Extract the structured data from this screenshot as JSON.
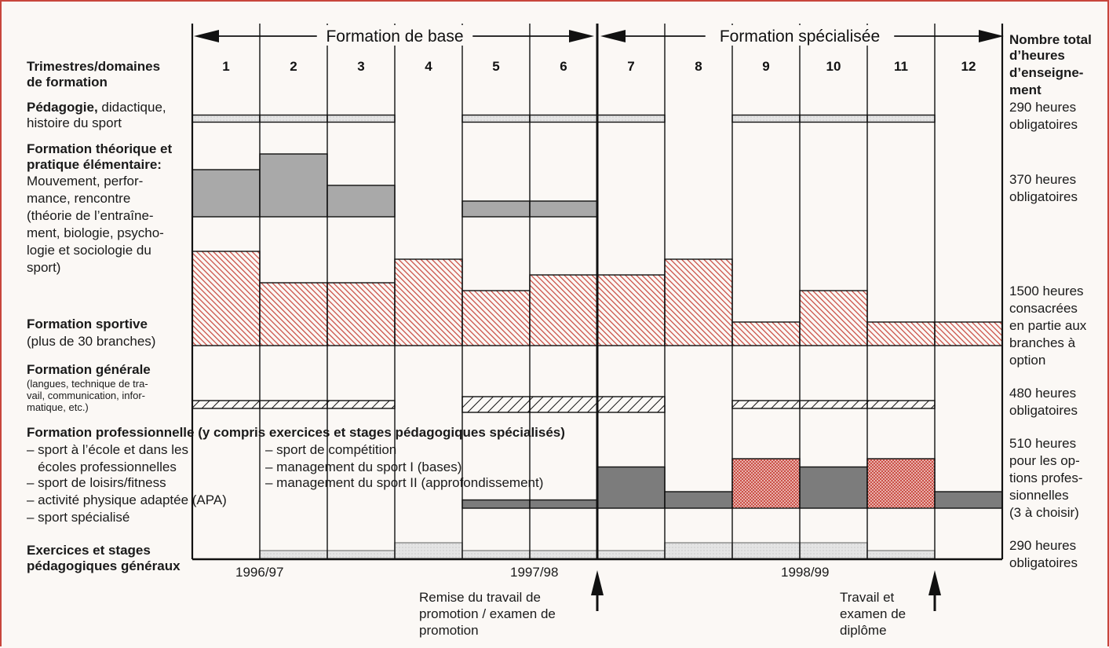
{
  "header": {
    "phase_base": "Formation de base",
    "phase_spec": "Formation spécialisée",
    "row_header": [
      "Trimestres/domaines",
      "de formation"
    ],
    "total_header": [
      "Nombre total",
      "d’heures",
      "d’enseigne-",
      "ment"
    ],
    "trimesters": [
      "1",
      "2",
      "3",
      "4",
      "5",
      "6",
      "7",
      "8",
      "9",
      "10",
      "11",
      "12"
    ]
  },
  "domains": {
    "pedagogie": {
      "title": "Pédagogie,",
      "rest": " didactique,",
      "line2": "histoire du sport",
      "total": [
        "290 heures",
        "obligatoires"
      ]
    },
    "theorique": {
      "lines_bold": [
        "Formation théorique et",
        "pratique élémentaire:"
      ],
      "lines": [
        "Mouvement, perfor-",
        "mance, rencontre",
        "(théorie de l’entraîne-",
        "ment, biologie, psycho-",
        "logie et sociologie du",
        "sport)"
      ],
      "total": [
        "370 heures",
        "obligatoires"
      ]
    },
    "sportive": {
      "title": "Formation sportive",
      "sub": "(plus de 30 branches)",
      "total": [
        "1500 heures",
        "consacrées",
        "en partie aux",
        "branches à",
        "option"
      ]
    },
    "generale": {
      "title": "Formation générale",
      "sub": [
        "(langues, technique de tra-",
        "vail, communication, infor-",
        "matique, etc.)"
      ],
      "total": [
        "480 heures",
        "obligatoires"
      ]
    },
    "professionnelle": {
      "title": "Formation professionnelle (y compris exercices et stages pédagogiques spécialisés)",
      "left": [
        "– sport à l’école et dans les",
        "   écoles professionnelles",
        "– sport de loisirs/fitness",
        "– activité physique adaptée (APA)",
        "– sport spécialisé"
      ],
      "right": [
        "– sport de compétition",
        "– management du sport I (bases)",
        "– management du sport II (approfondissement)"
      ],
      "total": [
        "510 heures",
        "pour les op-",
        "tions profes-",
        "sionnelles",
        "(3 à choisir)"
      ]
    },
    "stages": {
      "lines": [
        "Exercices et stages",
        "pédagogiques généraux"
      ],
      "total": [
        "290 heures",
        "obligatoires"
      ]
    }
  },
  "years": [
    "1996/97",
    "1997/98",
    "1998/99"
  ],
  "milestones": {
    "promotion": [
      "Remise du travail de",
      "promotion / examen de",
      "promotion"
    ],
    "diplome": [
      "Travail et",
      "examen de",
      "diplôme"
    ]
  },
  "colors": {
    "grey": "#aaaaaa",
    "light_grey": "#e2e2e2",
    "dark_grey": "#777777",
    "red": "#c8463c",
    "black": "#111111"
  },
  "chart_data": {
    "type": "table",
    "bands": {
      "pedagogie": [
        1,
        1,
        1,
        0,
        1,
        1,
        1,
        0,
        1,
        1,
        1,
        0
      ],
      "theorique": [
        3,
        4,
        2,
        0,
        1,
        1,
        0,
        0,
        0,
        0,
        0,
        0
      ],
      "sportive": [
        6,
        4,
        4,
        5.5,
        3.5,
        4.5,
        4.5,
        5.5,
        1.5,
        3.5,
        1.5,
        1.5
      ],
      "generale": [
        1,
        1,
        1,
        0,
        2,
        2,
        2,
        0,
        1,
        1,
        1,
        0
      ],
      "professionnelle": [
        0,
        0,
        0,
        0,
        0.5,
        0.5,
        2.5,
        1,
        3,
        2.5,
        3,
        1
      ],
      "stages": [
        0,
        0.5,
        0.5,
        1,
        0.5,
        0.5,
        0.5,
        1,
        1,
        1,
        0.5,
        0
      ]
    }
  }
}
